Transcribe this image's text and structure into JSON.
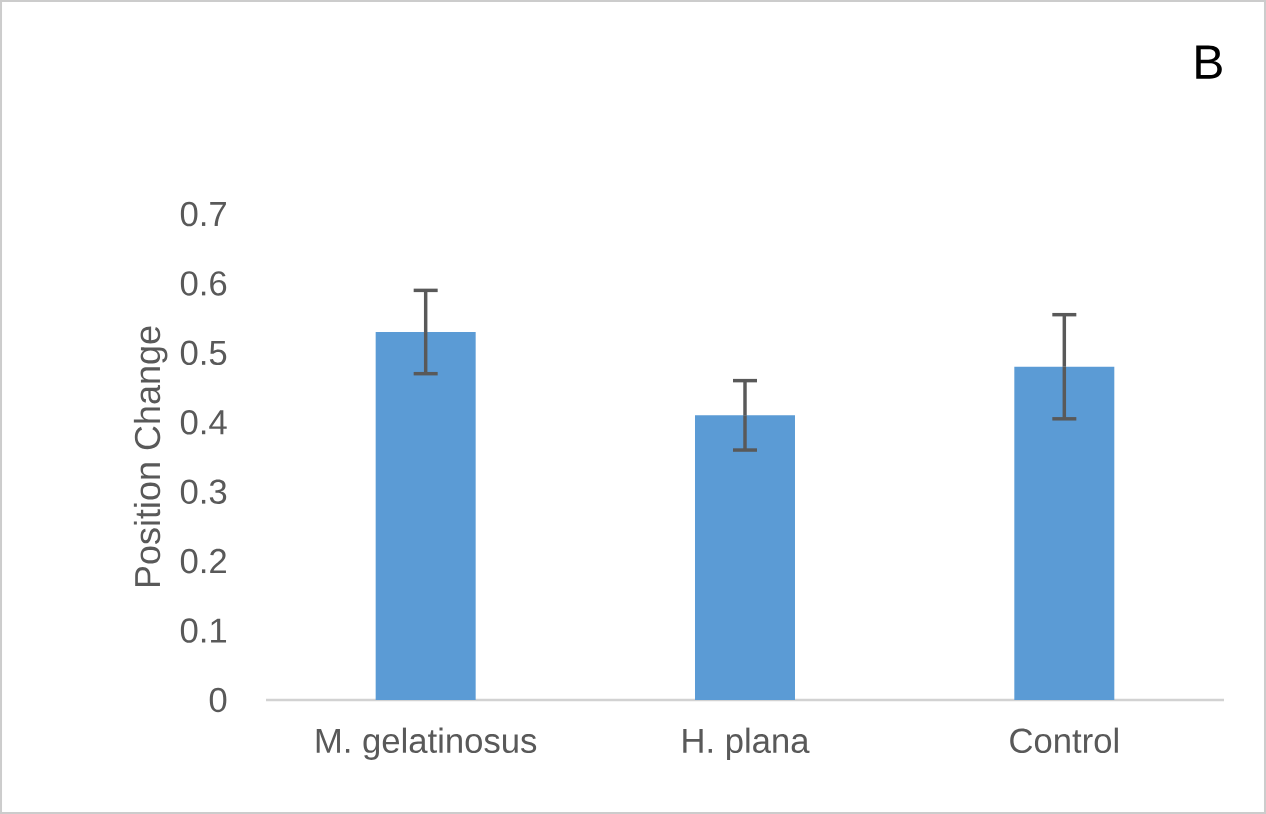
{
  "chart_data": {
    "type": "bar",
    "ylabel": "Position Change",
    "categories": [
      "M. gelatinosus",
      "H. plana",
      "Control"
    ],
    "values": [
      0.53,
      0.41,
      0.48
    ],
    "errors": [
      0.06,
      0.05,
      0.075
    ],
    "color": "#5b9bd5",
    "ylim": [
      0,
      0.7
    ],
    "yticks": [
      0,
      0.1,
      0.2,
      0.3,
      0.4,
      0.5,
      0.6,
      0.7
    ],
    "annotations": [
      "B"
    ]
  }
}
